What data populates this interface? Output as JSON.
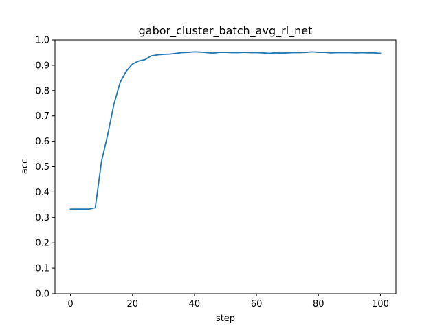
{
  "chart_data": {
    "type": "line",
    "title": "gabor_cluster_batch_avg_rl_net",
    "xlabel": "step",
    "ylabel": "acc",
    "xlim": [
      -5,
      105
    ],
    "ylim": [
      0.0,
      1.0
    ],
    "xticks": [
      0,
      20,
      40,
      60,
      80,
      100
    ],
    "xtick_labels": [
      "0",
      "20",
      "40",
      "60",
      "80",
      "100"
    ],
    "yticks": [
      0.0,
      0.1,
      0.2,
      0.3,
      0.4,
      0.5,
      0.6,
      0.7,
      0.8,
      0.9,
      1.0
    ],
    "ytick_labels": [
      "0.0",
      "0.1",
      "0.2",
      "0.3",
      "0.4",
      "0.5",
      "0.6",
      "0.7",
      "0.8",
      "0.9",
      "1.0"
    ],
    "grid": false,
    "line_color": "#1f77b4",
    "series": [
      {
        "x": [
          0,
          2,
          4,
          6,
          8,
          10,
          12,
          14,
          16,
          18,
          20,
          22,
          24,
          26,
          28,
          30,
          32,
          34,
          36,
          38,
          40,
          42,
          44,
          46,
          48,
          50,
          52,
          54,
          56,
          58,
          60,
          62,
          64,
          66,
          68,
          70,
          72,
          74,
          76,
          78,
          80,
          82,
          84,
          86,
          88,
          90,
          92,
          94,
          96,
          98,
          100
        ],
        "values": [
          0.333,
          0.333,
          0.333,
          0.333,
          0.338,
          0.52,
          0.625,
          0.745,
          0.832,
          0.877,
          0.905,
          0.917,
          0.922,
          0.937,
          0.941,
          0.943,
          0.944,
          0.947,
          0.95,
          0.951,
          0.953,
          0.952,
          0.95,
          0.948,
          0.951,
          0.951,
          0.95,
          0.95,
          0.951,
          0.95,
          0.95,
          0.949,
          0.947,
          0.949,
          0.948,
          0.949,
          0.95,
          0.95,
          0.951,
          0.953,
          0.951,
          0.951,
          0.949,
          0.95,
          0.95,
          0.95,
          0.949,
          0.95,
          0.949,
          0.949,
          0.947
        ]
      }
    ]
  }
}
